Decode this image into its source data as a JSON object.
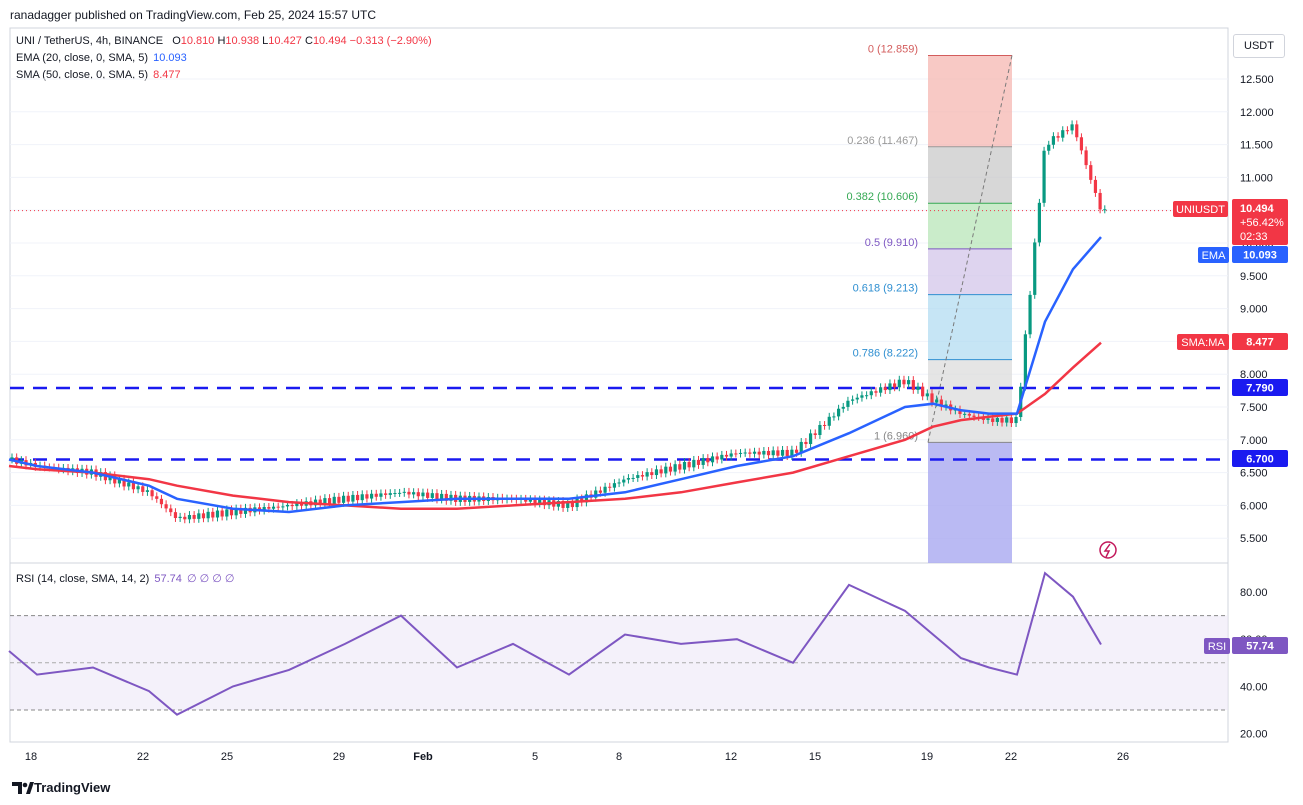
{
  "header": {
    "publisher": "ranadagger published on TradingView.com, Feb 25, 2024 15:57 UTC"
  },
  "legend": {
    "symbol": "UNI / TetherUS, 4h, BINANCE",
    "ohlc": [
      {
        "k": "O",
        "v": "10.810"
      },
      {
        "k": "H",
        "v": "10.938"
      },
      {
        "k": "L",
        "v": "10.427"
      },
      {
        "k": "C",
        "v": "10.494"
      }
    ],
    "change": "−0.313 (−2.90%)",
    "ema_label": "EMA (20, close, 0, SMA, 5)",
    "ema_value": "10.093",
    "sma_label": "SMA (50, close, 0, SMA, 5)",
    "sma_value": "8.477",
    "rsi_label": "RSI (14, close, SMA, 14, 2)",
    "rsi_value": "57.74",
    "rsi_extra": "∅ ∅ ∅ ∅"
  },
  "price_scale": {
    "unit": "USDT",
    "ticks": [
      "12.500",
      "12.000",
      "11.500",
      "11.000",
      "10.500",
      "10.000",
      "9.500",
      "9.000",
      "8.500",
      "8.000",
      "7.500",
      "7.000",
      "6.500",
      "6.000",
      "5.500"
    ]
  },
  "badges": {
    "symbol_label": "UNIUSDT",
    "price": "10.494",
    "change_pct": "+56.42%",
    "countdown": "02:33",
    "ema_label": "EMA",
    "ema_value": "10.093",
    "sma_label": "SMA:MA",
    "sma_value": "8.477",
    "lvl_high": "7.790",
    "lvl_low": "6.700",
    "rsi_label": "RSI",
    "rsi_value": "57.74"
  },
  "fib_labels": [
    {
      "ratio": "0",
      "price": "12.859",
      "text": "0 (12.859)"
    },
    {
      "ratio": "0.236",
      "price": "11.467",
      "text": "0.236 (11.467)"
    },
    {
      "ratio": "0.382",
      "price": "10.606",
      "text": "0.382 (10.606)"
    },
    {
      "ratio": "0.5",
      "price": "9.910",
      "text": "0.5 (9.910)"
    },
    {
      "ratio": "0.618",
      "price": "9.213",
      "text": "0.618 (9.213)"
    },
    {
      "ratio": "0.786",
      "price": "8.222",
      "text": "0.786 (8.222)"
    },
    {
      "ratio": "1",
      "price": "6.960",
      "text": "1 (6.960)"
    }
  ],
  "rsi_scale": {
    "ticks": [
      "80.00",
      "60.00",
      "40.00",
      "20.00"
    ]
  },
  "time_axis": {
    "labels": [
      "18",
      "22",
      "25",
      "29",
      "Feb",
      "5",
      "8",
      "12",
      "15",
      "19",
      "22",
      "26"
    ]
  },
  "footer": {
    "brand": "TradingView"
  },
  "colors": {
    "up": "#089981",
    "down": "#f23645",
    "ema": "#2962ff",
    "sma": "#f23645",
    "rsi": "#7e57c2",
    "level": "#1a1af0"
  },
  "chart_data": {
    "type": "line",
    "title": "UNI / TetherUS, 4h, BINANCE",
    "x": [
      "2024-01-17",
      "2024-01-18",
      "2024-01-20",
      "2024-01-22",
      "2024-01-23",
      "2024-01-25",
      "2024-01-27",
      "2024-01-29",
      "2024-01-31",
      "2024-02-02",
      "2024-02-04",
      "2024-02-06",
      "2024-02-08",
      "2024-02-10",
      "2024-02-12",
      "2024-02-14",
      "2024-02-16",
      "2024-02-18",
      "2024-02-19",
      "2024-02-20",
      "2024-02-21",
      "2024-02-22",
      "2024-02-23",
      "2024-02-24",
      "2024-02-25"
    ],
    "series": [
      {
        "name": "UNIUSDT",
        "values": [
          6.7,
          6.6,
          6.5,
          6.2,
          5.8,
          5.9,
          6.0,
          6.1,
          6.2,
          6.1,
          6.1,
          6.0,
          6.4,
          6.6,
          6.8,
          6.8,
          7.6,
          7.9,
          7.6,
          7.4,
          7.3,
          7.3,
          11.5,
          11.8,
          10.49
        ]
      },
      {
        "name": "EMA (20, close, 0, SMA, 5)",
        "values": [
          6.7,
          6.6,
          6.5,
          6.3,
          6.1,
          5.95,
          5.9,
          6.0,
          6.05,
          6.1,
          6.1,
          6.1,
          6.2,
          6.4,
          6.6,
          6.75,
          7.1,
          7.5,
          7.55,
          7.45,
          7.4,
          7.4,
          8.8,
          9.6,
          10.09
        ]
      },
      {
        "name": "SMA (50, close, 0, SMA, 5)",
        "values": [
          6.6,
          6.55,
          6.5,
          6.4,
          6.3,
          6.15,
          6.05,
          6.0,
          5.95,
          5.95,
          6.0,
          6.05,
          6.1,
          6.2,
          6.35,
          6.5,
          6.75,
          7.0,
          7.2,
          7.3,
          7.35,
          7.4,
          7.7,
          8.1,
          8.48
        ]
      },
      {
        "name": "RSI (14, close, SMA, 14, 2)",
        "values": [
          55,
          45,
          48,
          38,
          28,
          40,
          47,
          58,
          70,
          48,
          58,
          45,
          62,
          58,
          60,
          50,
          83,
          72,
          62,
          52,
          48,
          45,
          88,
          78,
          57.74
        ]
      }
    ],
    "horizontal_levels": [
      7.79,
      6.7
    ],
    "ylim": [
      5.2,
      13.1
    ],
    "rsi_ylim": [
      15,
      92
    ],
    "rsi_bands": [
      30,
      70
    ]
  }
}
